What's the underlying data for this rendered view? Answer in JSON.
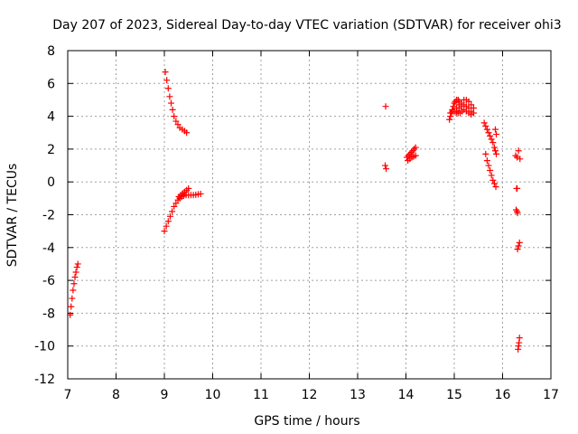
{
  "chart_data": {
    "type": "scatter",
    "title": "Day 207 of 2023, Sidereal Day-to-day VTEC variation (SDTVAR) for receiver ohi3",
    "xlabel": "GPS time / hours",
    "ylabel": "SDTVAR / TECUs",
    "xlim": [
      7,
      17
    ],
    "ylim": [
      -12,
      8
    ],
    "xticks": [
      7,
      8,
      9,
      10,
      11,
      12,
      13,
      14,
      15,
      16,
      17
    ],
    "yticks": [
      -12,
      -10,
      -8,
      -6,
      -4,
      -2,
      0,
      2,
      4,
      6,
      8
    ],
    "grid": true,
    "marker": "+",
    "color": "#ff0000",
    "series": [
      {
        "name": "SDTVAR",
        "segments": [
          {
            "x": [
              7.05,
              7.07,
              7.09,
              7.11,
              7.13,
              7.15,
              7.17,
              7.19,
              7.21
            ],
            "y": [
              -8.1,
              -7.6,
              -7.1,
              -6.6,
              -6.2,
              -5.8,
              -5.5,
              -5.2,
              -5.0
            ]
          },
          {
            "x": [
              9.02,
              9.05,
              9.08,
              9.11,
              9.14,
              9.17,
              9.2,
              9.24,
              9.28,
              9.32,
              9.37,
              9.42,
              9.46
            ],
            "y": [
              6.7,
              6.2,
              5.7,
              5.2,
              4.8,
              4.4,
              4.0,
              3.7,
              3.5,
              3.3,
              3.2,
              3.1,
              3.0
            ]
          },
          {
            "x": [
              9.0,
              9.04,
              9.08,
              9.12,
              9.16,
              9.2,
              9.24,
              9.28,
              9.32,
              9.36,
              9.4,
              9.45,
              9.5,
              9.55,
              9.6,
              9.65,
              9.7,
              9.75
            ],
            "y": [
              -3.0,
              -2.7,
              -2.4,
              -2.1,
              -1.8,
              -1.5,
              -1.3,
              -1.1,
              -1.0,
              -0.9,
              -0.85,
              -0.8,
              -0.8,
              -0.8,
              -0.8,
              -0.78,
              -0.75,
              -0.73
            ]
          },
          {
            "x": [
              9.3,
              9.34,
              9.38,
              9.42,
              9.46,
              9.5
            ],
            "y": [
              -0.9,
              -0.8,
              -0.7,
              -0.6,
              -0.5,
              -0.4
            ]
          },
          {
            "x": [
              13.58
            ],
            "y": [
              4.6
            ]
          },
          {
            "x": [
              13.57,
              13.59
            ],
            "y": [
              1.0,
              0.8
            ]
          },
          {
            "x": [
              14.02,
              14.05,
              14.08,
              14.11,
              14.14,
              14.17,
              14.2
            ],
            "y": [
              1.5,
              1.6,
              1.7,
              1.8,
              1.9,
              2.0,
              2.1
            ]
          },
          {
            "x": [
              14.04,
              14.08,
              14.12,
              14.16,
              14.2
            ],
            "y": [
              1.3,
              1.4,
              1.5,
              1.55,
              1.6
            ]
          },
          {
            "x": [
              14.9,
              14.92,
              14.94,
              14.96,
              14.98,
              15.0,
              15.02,
              15.05,
              15.08,
              15.1
            ],
            "y": [
              3.8,
              4.0,
              4.2,
              4.4,
              4.6,
              4.8,
              4.9,
              5.0,
              5.0,
              4.9
            ]
          },
          {
            "x": [
              14.92,
              14.96,
              15.0,
              15.04,
              15.08,
              15.12,
              15.16,
              15.2,
              15.25,
              15.3,
              15.35
            ],
            "y": [
              4.2,
              4.3,
              4.3,
              4.2,
              4.2,
              4.2,
              4.3,
              4.4,
              4.3,
              4.2,
              4.1
            ]
          },
          {
            "x": [
              15.05,
              15.1,
              15.15,
              15.2,
              15.25,
              15.3,
              15.35,
              15.4
            ],
            "y": [
              4.5,
              4.7,
              4.8,
              5.0,
              5.0,
              4.9,
              4.7,
              4.5
            ]
          },
          {
            "x": [
              15.05,
              15.1,
              15.15,
              15.2,
              15.25,
              15.3,
              15.35,
              15.4
            ],
            "y": [
              4.3,
              4.5,
              4.6,
              4.7,
              4.6,
              4.5,
              4.3,
              4.2
            ]
          },
          {
            "x": [
              15.62,
              15.65,
              15.68,
              15.71,
              15.74,
              15.77,
              15.8,
              15.83,
              15.85,
              15.87
            ],
            "y": [
              3.6,
              3.4,
              3.2,
              3.0,
              2.8,
              2.6,
              2.4,
              2.1,
              1.9,
              1.7
            ]
          },
          {
            "x": [
              15.85,
              15.87
            ],
            "y": [
              3.2,
              2.9
            ]
          },
          {
            "x": [
              15.65,
              15.68,
              15.71,
              15.74,
              15.77,
              15.8,
              15.83,
              15.86
            ],
            "y": [
              1.7,
              1.3,
              1.0,
              0.7,
              0.4,
              0.1,
              -0.1,
              -0.3
            ]
          },
          {
            "x": [
              16.27,
              16.3,
              16.33,
              16.36
            ],
            "y": [
              1.6,
              1.5,
              1.9,
              1.4
            ]
          },
          {
            "x": [
              16.29,
              16.3
            ],
            "y": [
              -0.4,
              -0.4
            ]
          },
          {
            "x": [
              16.28,
              16.3,
              16.31
            ],
            "y": [
              -1.7,
              -1.8,
              -1.9
            ]
          },
          {
            "x": [
              16.31,
              16.33,
              16.35
            ],
            "y": [
              -4.1,
              -3.9,
              -3.7
            ]
          },
          {
            "x": [
              16.32,
              16.33,
              16.34,
              16.35
            ],
            "y": [
              -10.2,
              -10.0,
              -9.8,
              -9.5
            ]
          }
        ]
      }
    ]
  }
}
